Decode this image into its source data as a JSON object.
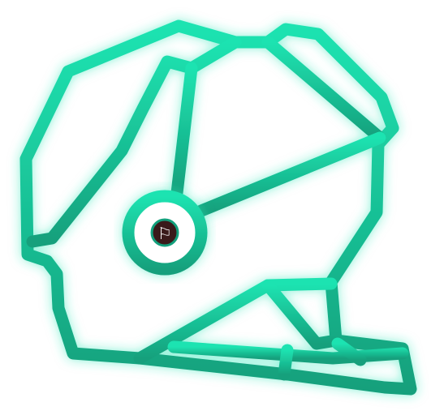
{
  "icon": {
    "name": "helmet-icon",
    "stroke_color_top": "#1fe3b1",
    "stroke_color_bottom": "#13a07c",
    "glow_color": "#2ae6b6",
    "earpiece_fill": "#ffffff",
    "center_dot_fill": "#3a1a1a",
    "center_glyph": "⚐"
  }
}
